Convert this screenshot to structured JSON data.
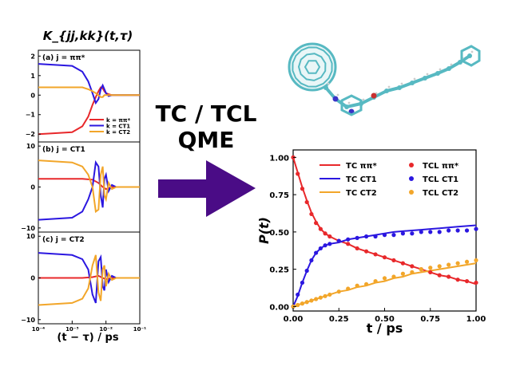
{
  "colors": {
    "pipi": "#e8282b",
    "ct1": "#2b17e0",
    "ct2": "#f2a62a",
    "arrow": "#4a0c86",
    "molecule": "#57b9c2",
    "hetero_n": "#3a35c8",
    "hetero_o": "#c83030"
  },
  "labels": {
    "big_title": "TC / TCL",
    "big_subtitle": "QME"
  },
  "chart_data": [
    {
      "type": "line",
      "title": "K_{jj,kk}(t,τ)",
      "xlabel": "(t − τ) / ps",
      "x_scale": "log",
      "xlim": [
        0.0001,
        0.1
      ],
      "xticks": [
        "10⁻⁴",
        "10⁻³",
        "10⁻²",
        "10⁻¹"
      ],
      "legend": {
        "entries": [
          "k = ππ*",
          "k = CT1",
          "k = CT2"
        ],
        "placement": "lower-right of panel (a)"
      },
      "panels": [
        {
          "label": "(a) j = ππ*",
          "ylim": [
            -2.4,
            2.3
          ],
          "yticks": [
            "2",
            "1",
            "0",
            "−1",
            "−2"
          ],
          "yticks_values": [
            2,
            1,
            0,
            -1,
            -2
          ],
          "series": [
            {
              "name": "k = ππ*",
              "x": [
                0.0001,
                0.001,
                0.002,
                0.003,
                0.004,
                0.005,
                0.006,
                0.007,
                0.008,
                0.009,
                0.01,
                0.012,
                0.015,
                0.02,
                0.1
              ],
              "y": [
                -2.0,
                -1.9,
                -1.6,
                -1.1,
                -0.5,
                -0.1,
                0.2,
                0.4,
                0.35,
                0.2,
                0.1,
                0.05,
                0.0,
                0.0,
                0.0
              ]
            },
            {
              "name": "k = CT1",
              "x": [
                0.0001,
                0.001,
                0.002,
                0.003,
                0.004,
                0.005,
                0.006,
                0.007,
                0.008,
                0.009,
                0.01,
                0.012,
                0.015,
                0.02,
                0.1
              ],
              "y": [
                1.6,
                1.5,
                1.2,
                0.7,
                0.1,
                -0.4,
                -0.2,
                0.3,
                0.5,
                0.3,
                0.1,
                -0.05,
                0.0,
                0.0,
                0.0
              ]
            },
            {
              "name": "k = CT2",
              "x": [
                0.0001,
                0.001,
                0.002,
                0.003,
                0.004,
                0.005,
                0.006,
                0.007,
                0.008,
                0.009,
                0.01,
                0.015,
                0.02,
                0.1
              ],
              "y": [
                0.4,
                0.4,
                0.4,
                0.3,
                0.2,
                0.1,
                0.0,
                -0.1,
                -0.1,
                0.0,
                0.0,
                0.0,
                0.0,
                0.0
              ]
            }
          ]
        },
        {
          "label": "(b) j = CT1",
          "ylim": [
            -11,
            11
          ],
          "yticks": [
            "10",
            "0",
            "−10"
          ],
          "yticks_values": [
            10,
            0,
            -10
          ],
          "series": [
            {
              "name": "k = ππ*",
              "x": [
                0.0001,
                0.002,
                0.004,
                0.006,
                0.008,
                0.01,
                0.015,
                0.02,
                0.1
              ],
              "y": [
                2.0,
                2.0,
                1.8,
                1.0,
                0.0,
                -0.5,
                0.0,
                0.0,
                0.0
              ]
            },
            {
              "name": "k = CT1",
              "x": [
                0.0001,
                0.001,
                0.002,
                0.003,
                0.004,
                0.005,
                0.006,
                0.007,
                0.008,
                0.009,
                0.01,
                0.012,
                0.015,
                0.02,
                0.1
              ],
              "y": [
                -8.0,
                -7.5,
                -6.0,
                -3.0,
                0.0,
                6.0,
                5.0,
                -2.0,
                -5.0,
                2.0,
                3.0,
                -1.0,
                0.5,
                0.0,
                0.0
              ]
            },
            {
              "name": "k = CT2",
              "x": [
                0.0001,
                0.001,
                0.002,
                0.003,
                0.004,
                0.005,
                0.006,
                0.007,
                0.008,
                0.009,
                0.01,
                0.012,
                0.015,
                0.02,
                0.1
              ],
              "y": [
                6.5,
                6.0,
                5.0,
                3.0,
                0.0,
                -6.0,
                -5.5,
                3.0,
                5.0,
                -2.0,
                -3.0,
                1.0,
                -0.5,
                0.0,
                0.0
              ]
            }
          ]
        },
        {
          "label": "(c) j = CT2",
          "ylim": [
            -11,
            11
          ],
          "yticks": [
            "10",
            "0",
            "−10"
          ],
          "yticks_values": [
            10,
            0,
            -10
          ],
          "series": [
            {
              "name": "k = ππ*",
              "x": [
                0.0001,
                0.002,
                0.004,
                0.006,
                0.008,
                0.01,
                0.015,
                0.1
              ],
              "y": [
                0.0,
                0.0,
                0.2,
                0.5,
                0.0,
                -0.3,
                0.0,
                0.0
              ]
            },
            {
              "name": "k = CT1",
              "x": [
                0.0001,
                0.001,
                0.002,
                0.003,
                0.004,
                0.005,
                0.006,
                0.007,
                0.008,
                0.009,
                0.01,
                0.012,
                0.015,
                0.02,
                0.1
              ],
              "y": [
                6.0,
                5.5,
                4.5,
                2.0,
                -4.0,
                -6.0,
                4.0,
                5.0,
                -2.0,
                -3.0,
                2.0,
                -1.0,
                0.5,
                0.0,
                0.0
              ]
            },
            {
              "name": "k = CT2",
              "x": [
                0.0001,
                0.001,
                0.002,
                0.003,
                0.004,
                0.005,
                0.006,
                0.007,
                0.008,
                0.009,
                0.01,
                0.012,
                0.015,
                0.02,
                0.1
              ],
              "y": [
                -6.5,
                -6.0,
                -5.0,
                -2.5,
                3.0,
                5.5,
                -3.5,
                -5.5,
                2.0,
                3.0,
                -2.0,
                1.0,
                -0.5,
                0.0,
                0.0
              ]
            }
          ]
        }
      ]
    },
    {
      "type": "line",
      "title": "",
      "xlabel": "t / ps",
      "ylabel": "P(t)",
      "xlim": [
        0,
        1
      ],
      "ylim": [
        -0.03,
        1.05
      ],
      "xticks": [
        0,
        0.25,
        0.5,
        0.75,
        1.0
      ],
      "xtick_labels": [
        "0.00",
        "0.25",
        "0.50",
        "0.75",
        "1.00"
      ],
      "yticks": [
        0,
        0.25,
        0.5,
        0.75,
        1.0
      ],
      "ytick_labels": [
        "0.00",
        "0.25",
        "0.50",
        "0.75",
        "1.00"
      ],
      "legend": {
        "entries": [
          "TC ππ*",
          "TC CT1",
          "TC CT2",
          "TCL ππ*",
          "TCL CT1",
          "TCL CT2"
        ],
        "placement": "top-right"
      },
      "x": [
        0.0,
        0.025,
        0.05,
        0.075,
        0.1,
        0.125,
        0.15,
        0.175,
        0.2,
        0.25,
        0.3,
        0.35,
        0.4,
        0.45,
        0.5,
        0.55,
        0.6,
        0.65,
        0.7,
        0.75,
        0.8,
        0.85,
        0.9,
        0.95,
        1.0
      ],
      "series": [
        {
          "name": "TC ππ*",
          "style": "line",
          "values": [
            1.0,
            0.9,
            0.8,
            0.71,
            0.63,
            0.57,
            0.52,
            0.49,
            0.47,
            0.44,
            0.42,
            0.39,
            0.37,
            0.35,
            0.33,
            0.31,
            0.29,
            0.27,
            0.25,
            0.23,
            0.21,
            0.2,
            0.18,
            0.17,
            0.15
          ]
        },
        {
          "name": "TC CT1",
          "style": "line",
          "values": [
            0.0,
            0.07,
            0.16,
            0.24,
            0.31,
            0.36,
            0.39,
            0.41,
            0.42,
            0.43,
            0.45,
            0.46,
            0.47,
            0.48,
            0.49,
            0.5,
            0.505,
            0.51,
            0.515,
            0.52,
            0.525,
            0.53,
            0.535,
            0.54,
            0.545
          ]
        },
        {
          "name": "TC CT2",
          "style": "line",
          "values": [
            0.0,
            0.01,
            0.02,
            0.03,
            0.04,
            0.05,
            0.06,
            0.07,
            0.08,
            0.1,
            0.11,
            0.13,
            0.14,
            0.16,
            0.17,
            0.19,
            0.2,
            0.22,
            0.23,
            0.24,
            0.25,
            0.26,
            0.27,
            0.28,
            0.29
          ]
        },
        {
          "name": "TCL ππ*",
          "style": "dots",
          "values": [
            1.0,
            0.89,
            0.79,
            0.7,
            0.62,
            0.56,
            0.52,
            0.49,
            0.47,
            0.44,
            0.42,
            0.39,
            0.37,
            0.35,
            0.33,
            0.31,
            0.29,
            0.27,
            0.25,
            0.23,
            0.21,
            0.2,
            0.18,
            0.17,
            0.16
          ]
        },
        {
          "name": "TCL CT1",
          "style": "dots",
          "values": [
            0.0,
            0.08,
            0.16,
            0.24,
            0.31,
            0.36,
            0.39,
            0.41,
            0.42,
            0.44,
            0.45,
            0.46,
            0.47,
            0.47,
            0.48,
            0.48,
            0.49,
            0.49,
            0.5,
            0.5,
            0.5,
            0.51,
            0.51,
            0.51,
            0.52
          ]
        },
        {
          "name": "TCL CT2",
          "style": "dots",
          "values": [
            0.0,
            0.01,
            0.02,
            0.03,
            0.04,
            0.05,
            0.06,
            0.07,
            0.08,
            0.1,
            0.12,
            0.14,
            0.15,
            0.17,
            0.19,
            0.2,
            0.22,
            0.23,
            0.25,
            0.26,
            0.27,
            0.28,
            0.29,
            0.3,
            0.31
          ]
        }
      ]
    }
  ]
}
